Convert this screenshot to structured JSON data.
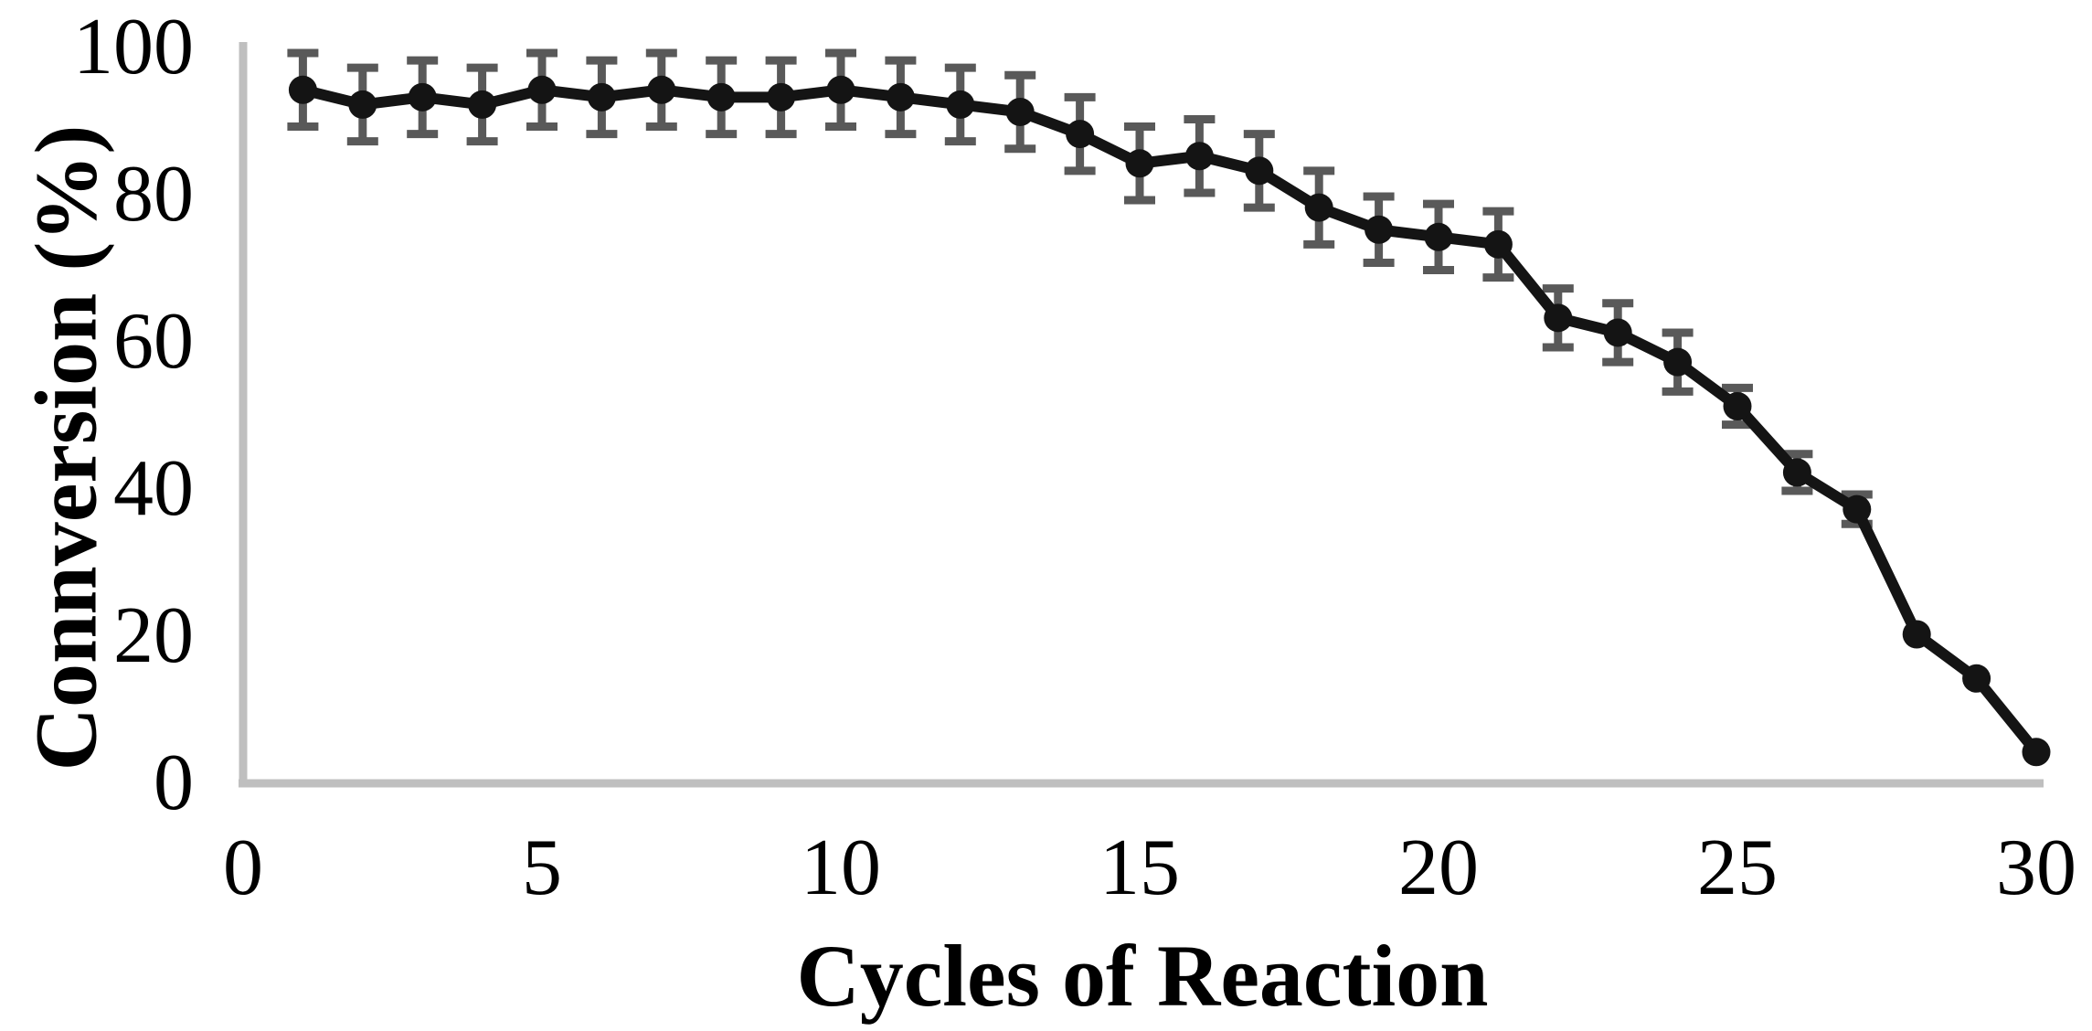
{
  "page": {
    "background": "#ffffff"
  },
  "chart_data": {
    "type": "line",
    "title": "",
    "xlabel": "Cycles of Reaction",
    "ylabel": "Connversion (%)",
    "x": [
      1,
      2,
      3,
      4,
      5,
      6,
      7,
      8,
      9,
      10,
      11,
      12,
      13,
      14,
      15,
      16,
      17,
      18,
      19,
      20,
      21,
      22,
      23,
      24,
      25,
      26,
      27,
      28,
      29,
      30
    ],
    "series": [
      {
        "name": "Conversion",
        "values": [
          94,
          92,
          93,
          92,
          94,
          93,
          94,
          93,
          93,
          94,
          93,
          92,
          91,
          88,
          84,
          85,
          83,
          78,
          75,
          74,
          73,
          63,
          61,
          57,
          51,
          42,
          37,
          20,
          14,
          4
        ],
        "errors": [
          5,
          5,
          5,
          5,
          5,
          5,
          5,
          5,
          5,
          5,
          5,
          5,
          5,
          5,
          5,
          5,
          5,
          5,
          4.5,
          4.5,
          4.5,
          4,
          4,
          4,
          2.5,
          2.5,
          2,
          0,
          0,
          0
        ]
      }
    ],
    "xlim": [
      0,
      30
    ],
    "ylim": [
      0,
      100
    ],
    "xticks": [
      0,
      5,
      10,
      15,
      20,
      25,
      30
    ],
    "yticks": [
      0,
      20,
      40,
      60,
      80,
      100
    ],
    "grid": false,
    "legend_position": "none",
    "marker": "circle",
    "colors": {
      "series": "#141414",
      "error_bar": "#595959",
      "axis_line": "#bfbfbf",
      "text": "#000000"
    }
  }
}
